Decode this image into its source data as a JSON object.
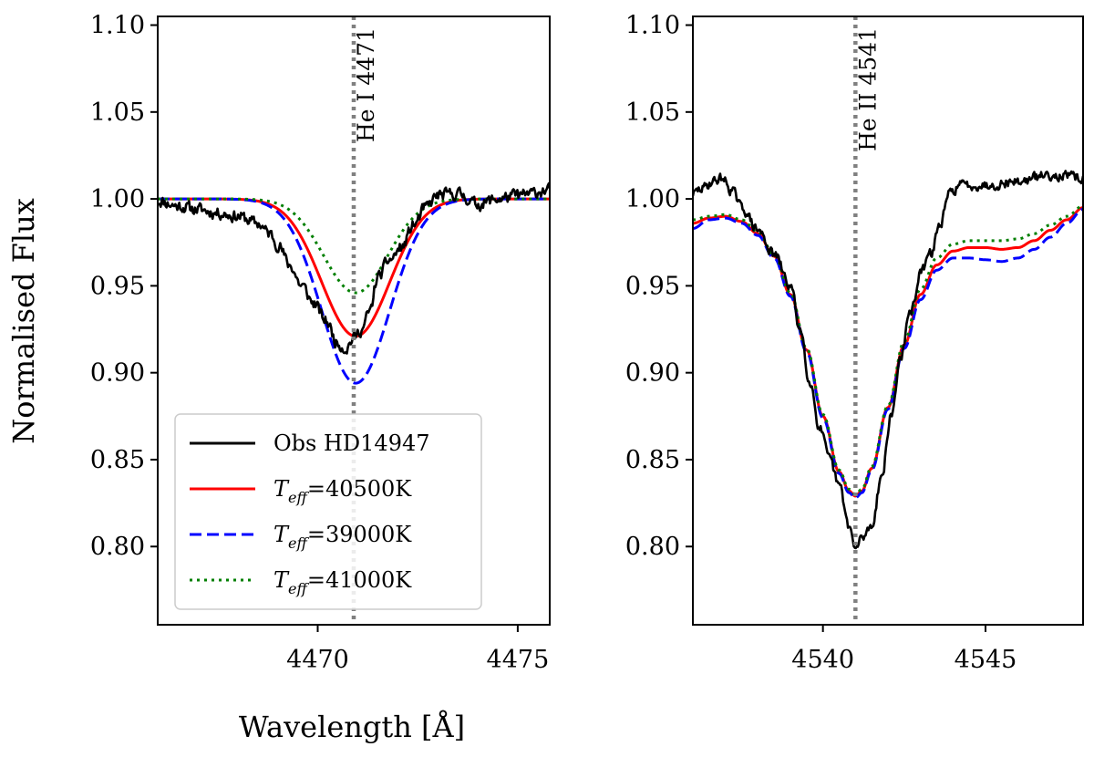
{
  "figure": {
    "ylabel": "Normalised Flux",
    "xlabel": "Wavelength [Å]"
  },
  "colors": {
    "observed": "#000000",
    "model_40500": "#ff0000",
    "model_39000": "#0000ff",
    "model_41000": "#007f00",
    "line_marker": "#808080"
  },
  "legend": {
    "location": "lower-left of left panel",
    "entries": [
      {
        "key": "obs",
        "label_plain": "Obs HD14947",
        "style": "solid",
        "color": "#000000"
      },
      {
        "key": "m40500",
        "label_prefix": "T",
        "label_sub": "eff",
        "label_suffix": "=40500K",
        "style": "solid",
        "color": "#ff0000"
      },
      {
        "key": "m39000",
        "label_prefix": "T",
        "label_sub": "eff",
        "label_suffix": "=39000K",
        "style": "dashed",
        "color": "#0000ff"
      },
      {
        "key": "m41000",
        "label_prefix": "T",
        "label_sub": "eff",
        "label_suffix": "=41000K",
        "style": "dotted",
        "color": "#007f00"
      }
    ]
  },
  "chart_data": [
    {
      "type": "line",
      "panel": "left",
      "title": "",
      "xlabel": "Wavelength [Å]",
      "ylabel": "Normalised Flux",
      "xlim": [
        4466.0,
        4475.8
      ],
      "ylim": [
        0.755,
        1.105
      ],
      "xticks": [
        4470,
        4475
      ],
      "yticks": [
        0.8,
        0.85,
        0.9,
        0.95,
        1.0,
        1.05,
        1.1
      ],
      "ytick_labels": [
        "0.80",
        "0.85",
        "0.90",
        "0.95",
        "1.00",
        "1.05",
        "1.10"
      ],
      "line_marker": {
        "x": 4470.9,
        "label": "He I 4471"
      },
      "series": [
        {
          "name": "Obs HD14947",
          "style": "solid",
          "noise": 0.003,
          "seed": 11,
          "x": [
            4466.0,
            4466.5,
            4467.0,
            4467.5,
            4468.0,
            4468.5,
            4468.8,
            4469.0,
            4469.3,
            4469.6,
            4469.9,
            4470.2,
            4470.5,
            4470.7,
            4470.9,
            4471.1,
            4471.3,
            4471.5,
            4471.8,
            4472.1,
            4472.4,
            4472.7,
            4473.0,
            4473.5,
            4474.0,
            4474.5,
            4475.0,
            4475.8
          ],
          "y": [
            0.999,
            0.996,
            0.994,
            0.992,
            0.99,
            0.986,
            0.98,
            0.974,
            0.962,
            0.95,
            0.94,
            0.93,
            0.917,
            0.914,
            0.92,
            0.925,
            0.935,
            0.955,
            0.965,
            0.972,
            0.985,
            0.995,
            1.002,
            1.003,
            0.997,
            1.0,
            1.002,
            1.005
          ]
        },
        {
          "name": "Teff=40500K",
          "style": "solid",
          "x": [
            4466.0,
            4475.8
          ],
          "y": [
            1.0,
            1.0
          ],
          "profile": {
            "center": 4470.95,
            "depth": 0.079,
            "sigma": 0.85
          }
        },
        {
          "name": "Teff=39000K",
          "style": "dashed",
          "x": [
            4466.0,
            4475.8
          ],
          "y": [
            1.0,
            1.0
          ],
          "profile": {
            "center": 4470.95,
            "depth": 0.106,
            "sigma": 0.85
          }
        },
        {
          "name": "Teff=41000K",
          "style": "dotted",
          "x": [
            4466.0,
            4475.8
          ],
          "y": [
            1.0,
            1.0
          ],
          "profile": {
            "center": 4470.95,
            "depth": 0.054,
            "sigma": 0.8
          }
        }
      ]
    },
    {
      "type": "line",
      "panel": "right",
      "title": "",
      "xlabel": "",
      "ylabel": "",
      "xlim": [
        4536.0,
        4548.0
      ],
      "ylim": [
        0.755,
        1.105
      ],
      "xticks": [
        4540,
        4545
      ],
      "yticks": [
        0.8,
        0.85,
        0.9,
        0.95,
        1.0,
        1.05,
        1.1
      ],
      "ytick_labels": [
        "0.80",
        "0.85",
        "0.90",
        "0.95",
        "1.00",
        "1.05",
        "1.10"
      ],
      "line_marker": {
        "x": 4541.0,
        "label": "He II 4541"
      },
      "series": [
        {
          "name": "Obs HD14947",
          "style": "solid",
          "noise": 0.0025,
          "seed": 29,
          "x": [
            4536.0,
            4536.3,
            4536.6,
            4536.9,
            4537.2,
            4537.5,
            4538.0,
            4538.5,
            4539.0,
            4539.3,
            4539.6,
            4539.9,
            4540.2,
            4540.5,
            4540.8,
            4541.0,
            4541.2,
            4541.5,
            4541.8,
            4542.1,
            4542.4,
            4542.7,
            4543.0,
            4543.3,
            4543.6,
            4543.9,
            4544.2,
            4544.5,
            4545.0,
            4546.0,
            4547.0,
            4548.0
          ],
          "y": [
            1.003,
            1.006,
            1.01,
            1.012,
            1.005,
            0.995,
            0.982,
            0.968,
            0.95,
            0.925,
            0.895,
            0.868,
            0.85,
            0.835,
            0.812,
            0.798,
            0.805,
            0.812,
            0.84,
            0.875,
            0.91,
            0.935,
            0.957,
            0.968,
            0.985,
            1.003,
            1.008,
            1.008,
            1.008,
            1.01,
            1.014,
            1.012
          ]
        },
        {
          "name": "Teff=40500K",
          "style": "solid",
          "x": [
            4536.0,
            4536.5,
            4537.0,
            4537.5,
            4538.0,
            4538.5,
            4539.0,
            4539.5,
            4540.0,
            4540.5,
            4540.8,
            4541.0,
            4541.2,
            4541.5,
            4542.0,
            4542.5,
            4543.0,
            4543.5,
            4544.0,
            4544.5,
            4545.0,
            4545.5,
            4546.0,
            4546.5,
            4547.0,
            4547.5,
            4548.0
          ],
          "y": [
            0.986,
            0.989,
            0.99,
            0.987,
            0.98,
            0.967,
            0.945,
            0.913,
            0.875,
            0.843,
            0.832,
            0.829,
            0.832,
            0.845,
            0.88,
            0.916,
            0.945,
            0.962,
            0.97,
            0.972,
            0.972,
            0.971,
            0.972,
            0.976,
            0.982,
            0.988,
            0.995
          ]
        },
        {
          "name": "Teff=39000K",
          "style": "dashed",
          "x": [
            4536.0,
            4536.5,
            4537.0,
            4537.5,
            4538.0,
            4538.5,
            4539.0,
            4539.5,
            4540.0,
            4540.5,
            4540.8,
            4541.0,
            4541.2,
            4541.5,
            4542.0,
            4542.5,
            4543.0,
            4543.5,
            4544.0,
            4544.5,
            4545.0,
            4545.5,
            4546.0,
            4546.5,
            4547.0,
            4547.5,
            4548.0
          ],
          "y": [
            0.983,
            0.988,
            0.989,
            0.986,
            0.979,
            0.966,
            0.944,
            0.912,
            0.874,
            0.842,
            0.831,
            0.828,
            0.831,
            0.844,
            0.879,
            0.914,
            0.942,
            0.959,
            0.966,
            0.966,
            0.965,
            0.964,
            0.966,
            0.971,
            0.978,
            0.986,
            0.994
          ]
        },
        {
          "name": "Teff=41000K",
          "style": "dotted",
          "x": [
            4536.0,
            4536.5,
            4537.0,
            4537.5,
            4538.0,
            4538.5,
            4539.0,
            4539.5,
            4540.0,
            4540.5,
            4540.8,
            4541.0,
            4541.2,
            4541.5,
            4542.0,
            4542.5,
            4543.0,
            4543.5,
            4544.0,
            4544.5,
            4545.0,
            4545.5,
            4546.0,
            4546.5,
            4547.0,
            4547.5,
            4548.0
          ],
          "y": [
            0.988,
            0.99,
            0.991,
            0.988,
            0.981,
            0.968,
            0.946,
            0.914,
            0.876,
            0.844,
            0.833,
            0.83,
            0.833,
            0.846,
            0.881,
            0.918,
            0.948,
            0.966,
            0.974,
            0.976,
            0.976,
            0.976,
            0.977,
            0.98,
            0.985,
            0.99,
            0.996
          ]
        }
      ]
    }
  ]
}
